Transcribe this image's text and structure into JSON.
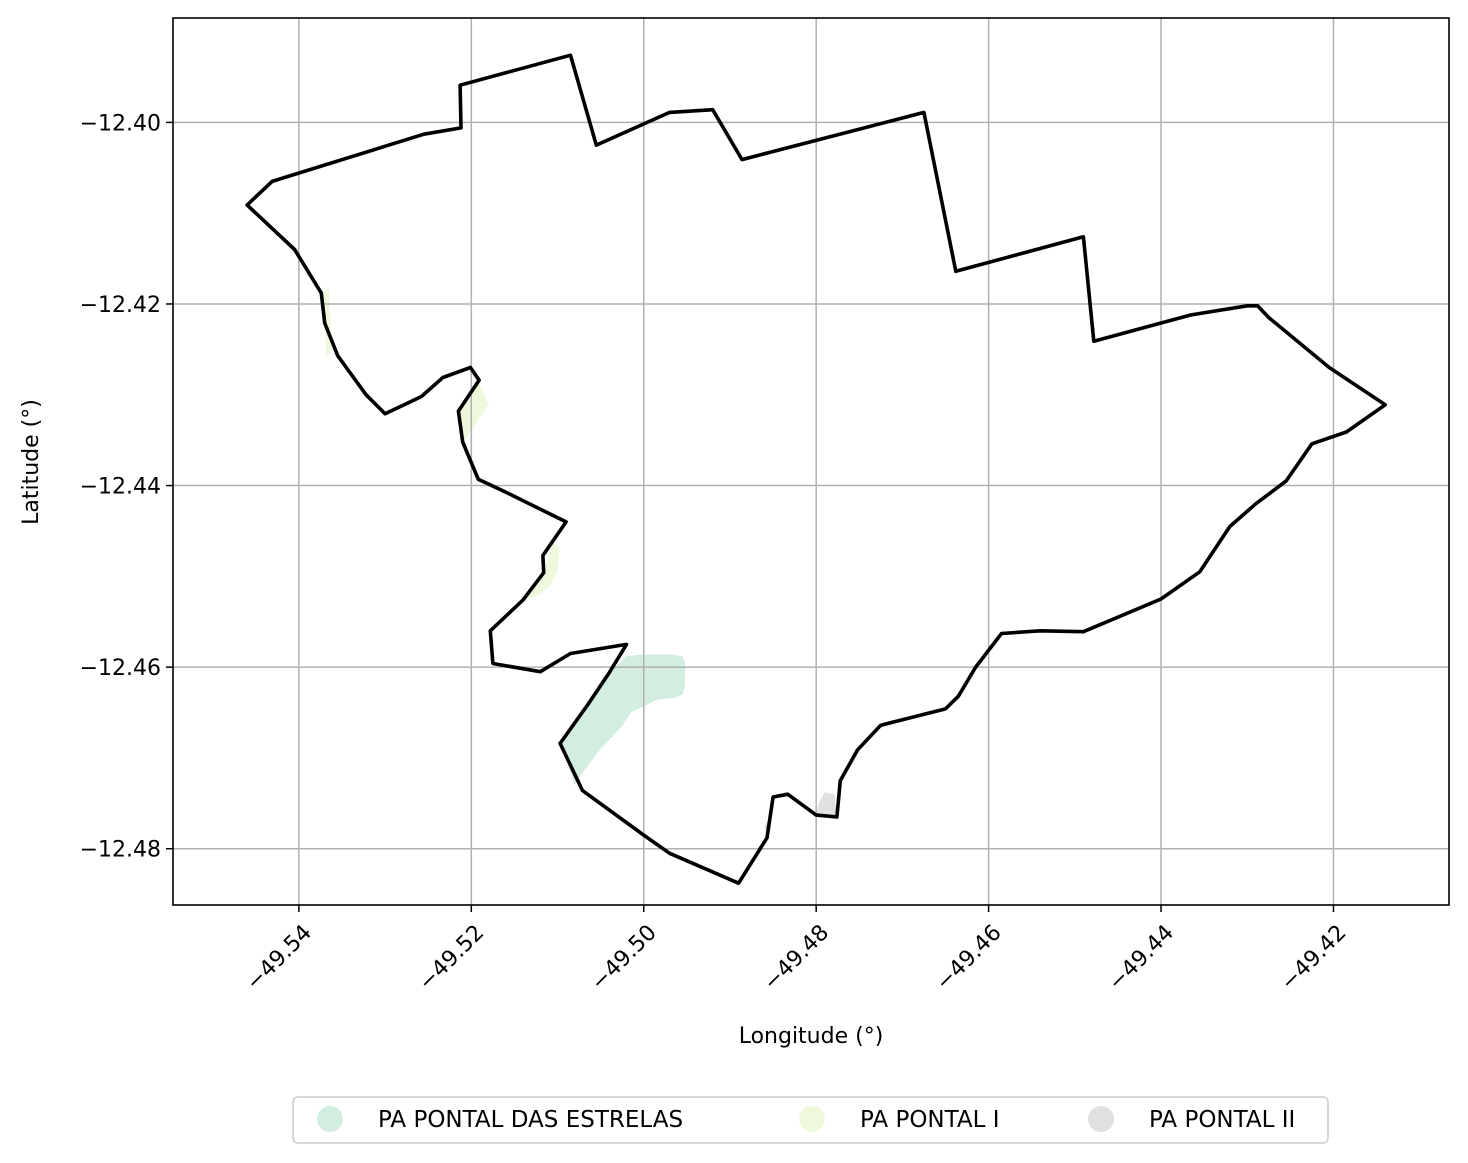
{
  "chart_data": {
    "type": "map",
    "xlabel": "Longitude (°)",
    "ylabel": "Latitude (°)",
    "xlim": [
      -49.5546,
      -49.4066
    ],
    "ylim": [
      -12.4862,
      -12.3885
    ],
    "grid": true,
    "legend_position": "bottom-center",
    "xticks": [
      {
        "value": -49.54,
        "label": "−49.54"
      },
      {
        "value": -49.52,
        "label": "−49.52"
      },
      {
        "value": -49.5,
        "label": "−49.50"
      },
      {
        "value": -49.48,
        "label": "−49.48"
      },
      {
        "value": -49.46,
        "label": "−49.46"
      },
      {
        "value": -49.44,
        "label": "−49.44"
      },
      {
        "value": -49.42,
        "label": "−49.42"
      }
    ],
    "yticks": [
      {
        "value": -12.4,
        "label": "−12.40"
      },
      {
        "value": -12.42,
        "label": "−12.42"
      },
      {
        "value": -12.44,
        "label": "−12.44"
      },
      {
        "value": -12.46,
        "label": "−12.46"
      },
      {
        "value": -12.48,
        "label": "−12.48"
      }
    ],
    "boundary": [
      [
        -49.546,
        -12.4091
      ],
      [
        -49.5431,
        -12.4065
      ],
      [
        -49.5255,
        -12.4013
      ],
      [
        -49.5212,
        -12.4006
      ],
      [
        -49.5213,
        -12.3959
      ],
      [
        -49.5085,
        -12.3926
      ],
      [
        -49.5055,
        -12.4025
      ],
      [
        -49.497,
        -12.3989
      ],
      [
        -49.492,
        -12.3986
      ],
      [
        -49.4886,
        -12.4041
      ],
      [
        -49.4675,
        -12.3989
      ],
      [
        -49.4638,
        -12.4164
      ],
      [
        -49.449,
        -12.4126
      ],
      [
        -49.4478,
        -12.4241
      ],
      [
        -49.4365,
        -12.4212
      ],
      [
        -49.43,
        -12.4202
      ],
      [
        -49.4288,
        -12.4202
      ],
      [
        -49.4275,
        -12.4215
      ],
      [
        -49.4205,
        -12.427
      ],
      [
        -49.414,
        -12.4311
      ],
      [
        -49.4185,
        -12.4341
      ],
      [
        -49.4225,
        -12.4354
      ],
      [
        -49.4255,
        -12.4395
      ],
      [
        -49.429,
        -12.442
      ],
      [
        -49.432,
        -12.4445
      ],
      [
        -49.4325,
        -12.4452
      ],
      [
        -49.4355,
        -12.4495
      ],
      [
        -49.44,
        -12.4525
      ],
      [
        -49.449,
        -12.4561
      ],
      [
        -49.454,
        -12.456
      ],
      [
        -49.4585,
        -12.4563
      ],
      [
        -49.4615,
        -12.46
      ],
      [
        -49.4635,
        -12.4632
      ],
      [
        -49.465,
        -12.4646
      ],
      [
        -49.4725,
        -12.4664
      ],
      [
        -49.4752,
        -12.4691
      ],
      [
        -49.4772,
        -12.4725
      ],
      [
        -49.4776,
        -12.4765
      ],
      [
        -49.48,
        -12.4763
      ],
      [
        -49.4833,
        -12.474
      ],
      [
        -49.485,
        -12.4743
      ],
      [
        -49.4857,
        -12.4788
      ],
      [
        -49.489,
        -12.4838
      ],
      [
        -49.497,
        -12.4805
      ],
      [
        -49.5,
        -12.4785
      ],
      [
        -49.5071,
        -12.4736
      ],
      [
        -49.5097,
        -12.4684
      ],
      [
        -49.5064,
        -12.464
      ],
      [
        -49.504,
        -12.4606
      ],
      [
        -49.502,
        -12.4575
      ],
      [
        -49.5085,
        -12.4585
      ],
      [
        -49.512,
        -12.4605
      ],
      [
        -49.5175,
        -12.4596
      ],
      [
        -49.5178,
        -12.456
      ],
      [
        -49.514,
        -12.4526
      ],
      [
        -49.5116,
        -12.4496
      ],
      [
        -49.5117,
        -12.4477
      ],
      [
        -49.509,
        -12.444
      ],
      [
        -49.5165,
        -12.4405
      ],
      [
        -49.5192,
        -12.4393
      ],
      [
        -49.521,
        -12.4352
      ],
      [
        -49.5215,
        -12.4318
      ],
      [
        -49.5191,
        -12.4284
      ],
      [
        -49.5201,
        -12.427
      ],
      [
        -49.5233,
        -12.4281
      ],
      [
        -49.5258,
        -12.4302
      ],
      [
        -49.53,
        -12.4321
      ],
      [
        -49.5322,
        -12.43
      ],
      [
        -49.5355,
        -12.4257
      ],
      [
        -49.537,
        -12.4221
      ],
      [
        -49.5374,
        -12.4188
      ],
      [
        -49.5405,
        -12.414
      ],
      [
        -49.546,
        -12.4091
      ]
    ],
    "series": [
      {
        "name": "PA PONTAL DAS ESTRELAS",
        "color": "#d3ede0",
        "polygons": [
          [
            [
              -49.5095,
              -12.4686
            ],
            [
              -49.504,
              -12.4606
            ],
            [
              -49.502,
              -12.4588
            ],
            [
              -49.5,
              -12.4586
            ],
            [
              -49.497,
              -12.4586
            ],
            [
              -49.4955,
              -12.4588
            ],
            [
              -49.4952,
              -12.4596
            ],
            [
              -49.4952,
              -12.462
            ],
            [
              -49.4955,
              -12.463
            ],
            [
              -49.4965,
              -12.4634
            ],
            [
              -49.4985,
              -12.4636
            ],
            [
              -49.5015,
              -12.465
            ],
            [
              -49.5025,
              -12.4665
            ],
            [
              -49.505,
              -12.469
            ],
            [
              -49.507,
              -12.4715
            ],
            [
              -49.508,
              -12.473
            ]
          ]
        ]
      },
      {
        "name": "PA PONTAL I",
        "color": "#eef9dc",
        "polygons": [
          [
            [
              -49.5374,
              -12.4188
            ],
            [
              -49.5365,
              -12.4183
            ],
            [
              -49.5362,
              -12.425
            ],
            [
              -49.5368,
              -12.426
            ],
            [
              -49.537,
              -12.4221
            ]
          ],
          [
            [
              -49.5192,
              -12.4284
            ],
            [
              -49.5185,
              -12.43
            ],
            [
              -49.518,
              -12.431
            ],
            [
              -49.52,
              -12.434
            ],
            [
              -49.521,
              -12.4352
            ],
            [
              -49.5215,
              -12.4318
            ]
          ],
          [
            [
              -49.514,
              -12.4526
            ],
            [
              -49.5125,
              -12.4522
            ],
            [
              -49.511,
              -12.4512
            ],
            [
              -49.51,
              -12.4495
            ],
            [
              -49.5098,
              -12.447
            ],
            [
              -49.5105,
              -12.4462
            ],
            [
              -49.5116,
              -12.4496
            ]
          ]
        ]
      },
      {
        "name": "PA PONTAL II",
        "color": "#e0e0e0",
        "polygons": [
          [
            [
              -49.4857,
              -12.4788
            ],
            [
              -49.486,
              -12.4775
            ],
            [
              -49.4855,
              -12.4768
            ],
            [
              -49.485,
              -12.4743
            ]
          ],
          [
            [
              -49.48,
              -12.4763
            ],
            [
              -49.4797,
              -12.475
            ],
            [
              -49.479,
              -12.4738
            ],
            [
              -49.4779,
              -12.474
            ],
            [
              -49.4776,
              -12.4765
            ]
          ]
        ]
      }
    ]
  }
}
